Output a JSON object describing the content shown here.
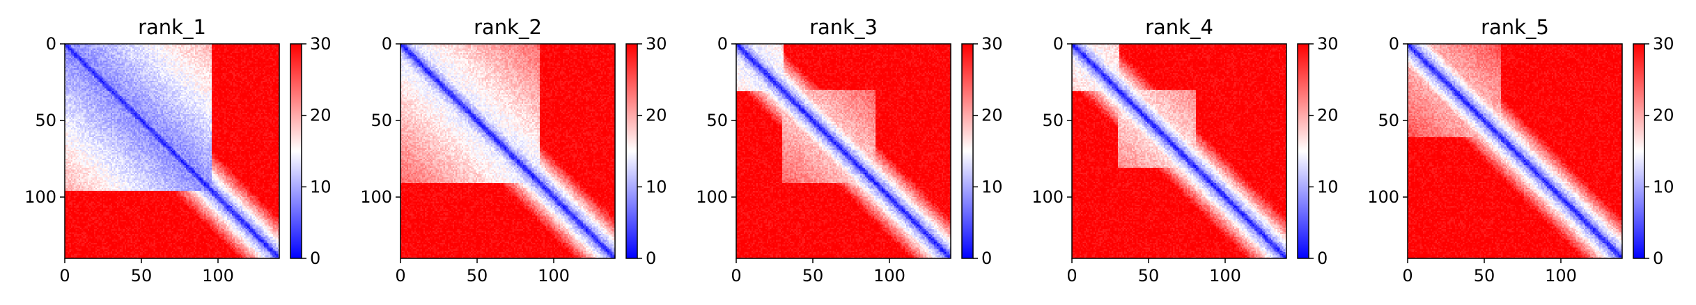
{
  "chart_data": [
    {
      "type": "heatmap",
      "title": "rank_1",
      "matrix_size": 140,
      "x_ticks": [
        0,
        50,
        100
      ],
      "y_ticks": [
        0,
        50,
        100
      ],
      "colorbar": {
        "min": 0,
        "max": 30,
        "ticks": [
          0,
          10,
          20,
          30
        ],
        "colormap": [
          "#0000ff",
          "#ffffff",
          "#ff0000"
        ]
      },
      "domains": [
        [
          0,
          95,
          8
        ]
      ],
      "diagonal_band": 2
    },
    {
      "type": "heatmap",
      "title": "rank_2",
      "matrix_size": 140,
      "x_ticks": [
        0,
        50,
        100
      ],
      "y_ticks": [
        0,
        50,
        100
      ],
      "colorbar": {
        "min": 0,
        "max": 30,
        "ticks": [
          0,
          10,
          20,
          30
        ],
        "colormap": [
          "#0000ff",
          "#ffffff",
          "#ff0000"
        ]
      },
      "domains": [
        [
          0,
          90,
          13
        ]
      ],
      "diagonal_band": 2
    },
    {
      "type": "heatmap",
      "title": "rank_3",
      "matrix_size": 140,
      "x_ticks": [
        0,
        50,
        100
      ],
      "y_ticks": [
        0,
        50,
        100
      ],
      "colorbar": {
        "min": 0,
        "max": 30,
        "ticks": [
          0,
          10,
          20,
          30
        ],
        "colormap": [
          "#0000ff",
          "#ffffff",
          "#ff0000"
        ]
      },
      "domains": [
        [
          0,
          30,
          13
        ],
        [
          30,
          90,
          17
        ]
      ],
      "diagonal_band": 2
    },
    {
      "type": "heatmap",
      "title": "rank_4",
      "matrix_size": 140,
      "x_ticks": [
        0,
        50,
        100
      ],
      "y_ticks": [
        0,
        50,
        100
      ],
      "colorbar": {
        "min": 0,
        "max": 30,
        "ticks": [
          0,
          10,
          20,
          30
        ],
        "colormap": [
          "#0000ff",
          "#ffffff",
          "#ff0000"
        ]
      },
      "domains": [
        [
          0,
          30,
          14
        ],
        [
          30,
          80,
          16
        ]
      ],
      "diagonal_band": 2
    },
    {
      "type": "heatmap",
      "title": "rank_5",
      "matrix_size": 140,
      "x_ticks": [
        0,
        50,
        100
      ],
      "y_ticks": [
        0,
        50,
        100
      ],
      "colorbar": {
        "min": 0,
        "max": 30,
        "ticks": [
          0,
          10,
          20,
          30
        ],
        "colormap": [
          "#0000ff",
          "#ffffff",
          "#ff0000"
        ]
      },
      "domains": [
        [
          0,
          60,
          18
        ]
      ],
      "diagonal_band": 2
    }
  ]
}
